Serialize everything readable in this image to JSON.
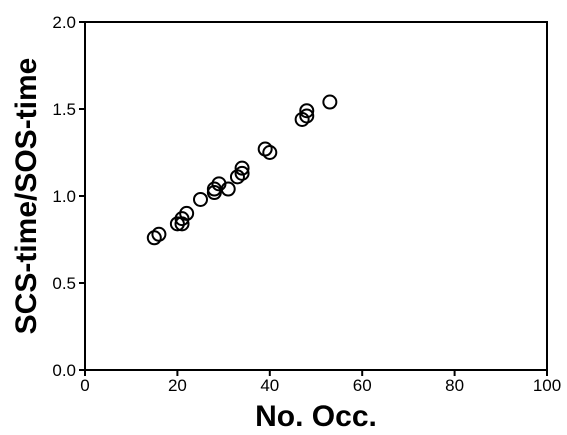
{
  "chart_data": {
    "type": "scatter",
    "title": "",
    "xlabel": "No. Occ.",
    "ylabel": "SCS-time/SOS-time",
    "xlim": [
      0,
      100
    ],
    "ylim": [
      0.0,
      2.0
    ],
    "xticks": [
      0,
      20,
      40,
      60,
      80,
      100
    ],
    "xtick_labels": [
      "0",
      "20",
      "40",
      "60",
      "80",
      "100"
    ],
    "yticks": [
      0.0,
      0.5,
      1.0,
      1.5,
      2.0
    ],
    "ytick_labels": [
      "0.0",
      "0.5",
      "1.0",
      "1.5",
      "2.0"
    ],
    "grid": false,
    "legend": "none",
    "marker": "open-circle",
    "series": [
      {
        "points": [
          [
            15,
            0.76
          ],
          [
            16,
            0.78
          ],
          [
            20,
            0.84
          ],
          [
            21,
            0.84
          ],
          [
            21,
            0.87
          ],
          [
            22,
            0.9
          ],
          [
            25,
            0.98
          ],
          [
            28,
            1.02
          ],
          [
            28,
            1.04
          ],
          [
            29,
            1.07
          ],
          [
            31,
            1.04
          ],
          [
            33,
            1.11
          ],
          [
            34,
            1.13
          ],
          [
            34,
            1.16
          ],
          [
            39,
            1.27
          ],
          [
            40,
            1.25
          ],
          [
            47,
            1.44
          ],
          [
            48,
            1.46
          ],
          [
            48,
            1.49
          ],
          [
            53,
            1.54
          ]
        ]
      }
    ]
  },
  "colors": {
    "axis": "#000000",
    "marker_stroke": "#000000",
    "background": "#ffffff"
  }
}
